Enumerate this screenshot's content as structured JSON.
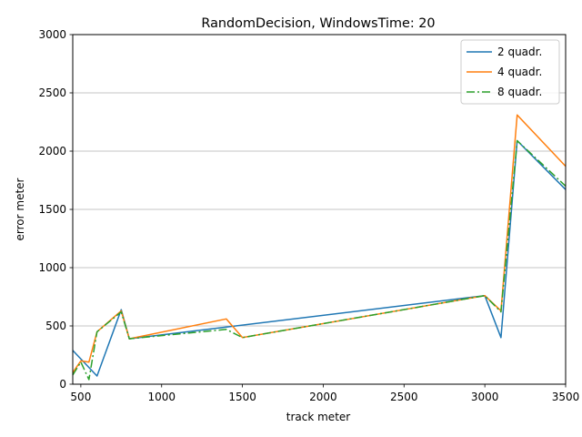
{
  "chart_data": {
    "type": "line",
    "title": "RandomDecision, WindowsTime: 20",
    "xlabel": "track meter",
    "ylabel": "error meter",
    "xlim": [
      450,
      3500
    ],
    "ylim": [
      0,
      3000
    ],
    "xticks": [
      500,
      1000,
      1500,
      2000,
      2500,
      3000,
      3500
    ],
    "yticks": [
      0,
      500,
      1000,
      1500,
      2000,
      2500,
      3000
    ],
    "grid": "y-axis horizontal lines",
    "legend_position": "top-right",
    "series": [
      {
        "name": "2 quadr.",
        "color": "#1f77b4",
        "dash": "solid",
        "x": [
          450,
          600,
          750,
          800,
          1400,
          3000,
          3100,
          3200,
          3500
        ],
        "y": [
          290,
          70,
          640,
          390,
          490,
          760,
          400,
          2090,
          1670
        ]
      },
      {
        "name": "4 quadr.",
        "color": "#ff7f0e",
        "dash": "solid",
        "x": [
          450,
          500,
          550,
          600,
          750,
          800,
          1400,
          1500,
          3000,
          3100,
          3200,
          3500
        ],
        "y": [
          100,
          200,
          190,
          450,
          630,
          390,
          560,
          400,
          760,
          630,
          2310,
          1870
        ]
      },
      {
        "name": "8 quadr.",
        "color": "#2ca02c",
        "dash": "dashdot",
        "x": [
          450,
          500,
          550,
          600,
          750,
          800,
          1400,
          1500,
          3000,
          3100,
          3200,
          3500
        ],
        "y": [
          80,
          190,
          40,
          450,
          620,
          390,
          470,
          400,
          760,
          620,
          2090,
          1700
        ]
      }
    ]
  }
}
